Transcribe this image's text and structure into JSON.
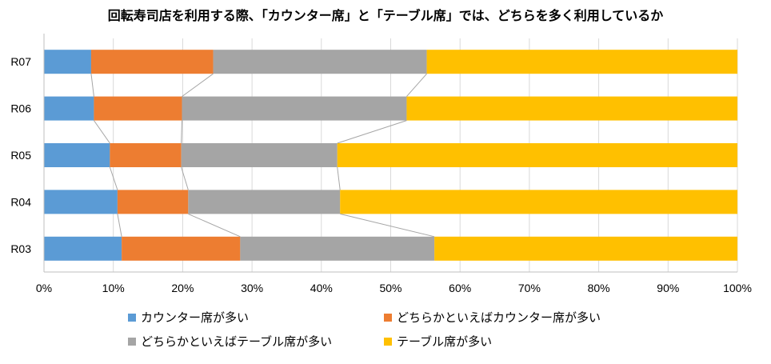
{
  "chart_data": {
    "type": "bar",
    "orientation": "horizontal",
    "stacked": "percent",
    "title": "回転寿司店を利用する際、「カウンター席」と「テーブル席」では、どちらを多く利用しているか",
    "categories": [
      "R07",
      "R06",
      "R05",
      "R04",
      "R03"
    ],
    "series": [
      {
        "name": "カウンター席が多い",
        "color": "#5B9BD5",
        "values": [
          6.8,
          7.2,
          9.5,
          10.6,
          11.2
        ]
      },
      {
        "name": "どちらかといえばカウンター席が多い",
        "color": "#ED7D31",
        "values": [
          17.6,
          12.7,
          10.3,
          10.2,
          17.1
        ]
      },
      {
        "name": "どちらかといえばテーブル席が多い",
        "color": "#A5A5A5",
        "values": [
          30.8,
          32.4,
          22.5,
          21.9,
          28.0
        ]
      },
      {
        "name": "テーブル席が多い",
        "color": "#FFC000",
        "values": [
          44.8,
          47.7,
          57.7,
          57.3,
          43.7
        ]
      }
    ],
    "xlim": [
      0,
      100
    ],
    "xticks": [
      "0%",
      "10%",
      "20%",
      "30%",
      "40%",
      "50%",
      "60%",
      "70%",
      "80%",
      "90%",
      "100%"
    ],
    "series_lines": true,
    "legend_position": "bottom"
  }
}
